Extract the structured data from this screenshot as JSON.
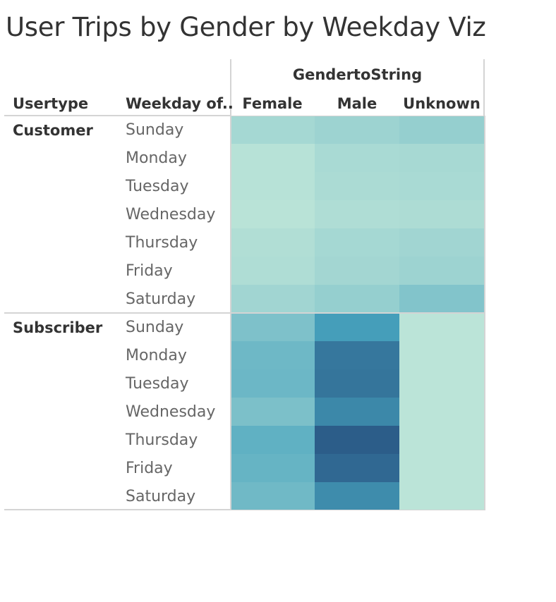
{
  "title": "User Trips by Gender by Weekday Viz",
  "chart_data": {
    "type": "heatmap",
    "title": "User Trips by Gender by Weekday Viz",
    "column_header": "GendertoString",
    "row_headers": [
      "Usertype",
      "Weekday of.."
    ],
    "columns": [
      "Female",
      "Male",
      "Unknown"
    ],
    "groups": [
      {
        "name": "Customer",
        "rows": [
          {
            "weekday": "Sunday",
            "intensity": [
              0.12,
              0.16,
              0.2
            ]
          },
          {
            "weekday": "Monday",
            "intensity": [
              0.03,
              0.1,
              0.11
            ]
          },
          {
            "weekday": "Tuesday",
            "intensity": [
              0.03,
              0.09,
              0.1
            ]
          },
          {
            "weekday": "Wednesday",
            "intensity": [
              0.02,
              0.07,
              0.08
            ]
          },
          {
            "weekday": "Thursday",
            "intensity": [
              0.06,
              0.12,
              0.14
            ]
          },
          {
            "weekday": "Friday",
            "intensity": [
              0.07,
              0.13,
              0.16
            ]
          },
          {
            "weekday": "Saturday",
            "intensity": [
              0.14,
              0.2,
              0.3
            ]
          }
        ]
      },
      {
        "name": "Subscriber",
        "rows": [
          {
            "weekday": "Sunday",
            "intensity": [
              0.32,
              0.62,
              0.01
            ]
          },
          {
            "weekday": "Monday",
            "intensity": [
              0.4,
              0.83,
              0.01
            ]
          },
          {
            "weekday": "Tuesday",
            "intensity": [
              0.41,
              0.84,
              0.01
            ]
          },
          {
            "weekday": "Wednesday",
            "intensity": [
              0.33,
              0.74,
              0.01
            ]
          },
          {
            "weekday": "Thursday",
            "intensity": [
              0.47,
              0.97,
              0.01
            ]
          },
          {
            "weekday": "Friday",
            "intensity": [
              0.44,
              0.91,
              0.01
            ]
          },
          {
            "weekday": "Saturday",
            "intensity": [
              0.39,
              0.72,
              0.01
            ]
          }
        ]
      }
    ],
    "color_scale": {
      "low": "#bde5d8",
      "mid": "#46a2bd",
      "high": "#2a5785"
    },
    "legend": "none"
  }
}
